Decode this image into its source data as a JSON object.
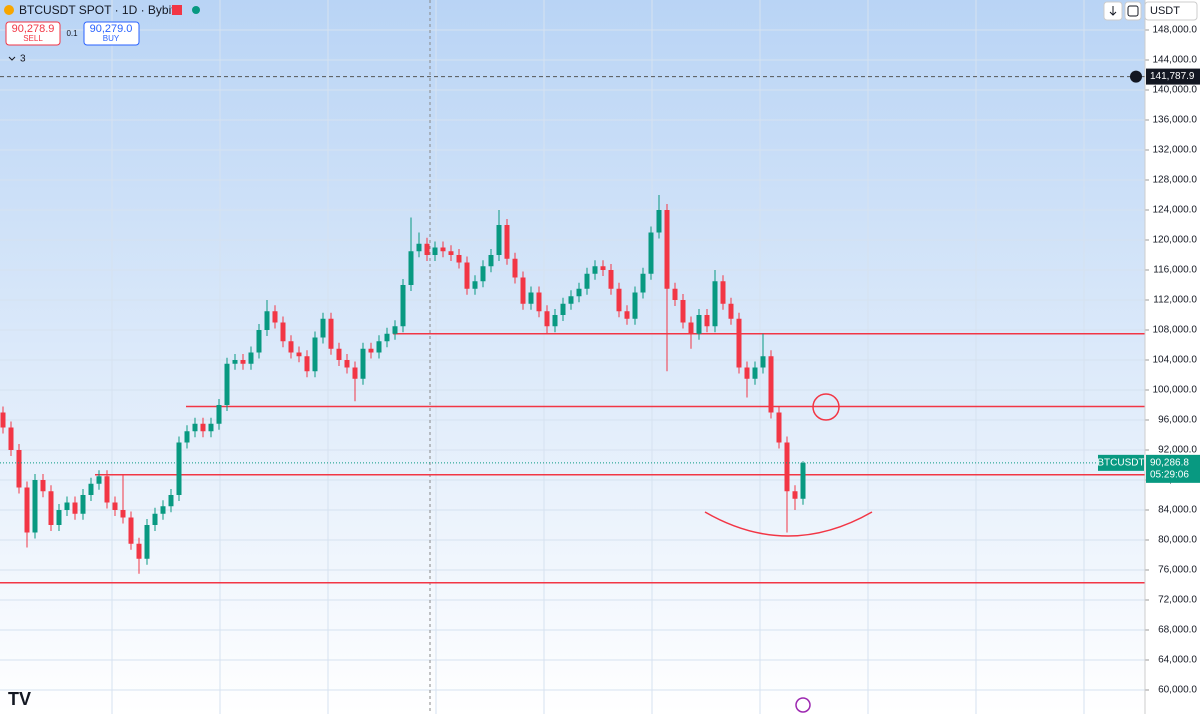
{
  "chart_data": {
    "type": "candlestick",
    "title": "BTCUSDT SPOT · 1D · Bybit",
    "open": [
      97000,
      95000,
      92000,
      87000,
      81000,
      88000,
      86500,
      82000,
      84000,
      85000,
      83500,
      86000,
      87500,
      88500,
      85000,
      84000,
      83000,
      79500,
      77500,
      82000,
      83500,
      84500,
      86000,
      93000,
      94500,
      95500,
      94500,
      95500,
      98000,
      103500,
      104000,
      103500,
      105000,
      108000,
      110500,
      109000,
      106500,
      105000,
      104500,
      102500,
      107000,
      109500,
      105500,
      104000,
      103000,
      101500,
      105500,
      105000,
      106500,
      107500,
      108500,
      114000,
      118500,
      119500,
      118000,
      119000,
      118500,
      118000,
      117000,
      113500,
      114500,
      116500,
      118000,
      122000,
      117500,
      115000,
      111500,
      113000,
      110500,
      108500,
      110000,
      111500,
      112500,
      113500,
      115500,
      116500,
      116000,
      113500,
      110500,
      109500,
      113000,
      115500,
      121000,
      124000,
      113500,
      112000,
      109000,
      107500,
      110000,
      108500,
      114500,
      111500,
      109500,
      103000,
      101500,
      103000,
      104500,
      97000,
      93000,
      86500,
      85500
    ],
    "high": [
      97800,
      95800,
      92800,
      87800,
      88800,
      88800,
      87300,
      84800,
      85800,
      85800,
      86800,
      88300,
      89300,
      89300,
      85800,
      88800,
      83800,
      80300,
      82800,
      84300,
      85300,
      86800,
      93800,
      95300,
      96300,
      96300,
      96300,
      98800,
      104300,
      104800,
      104800,
      105800,
      108800,
      112000,
      111300,
      109800,
      107300,
      105800,
      105300,
      107800,
      110300,
      110300,
      106300,
      104800,
      103800,
      106300,
      106300,
      107300,
      108300,
      109300,
      114800,
      123000,
      121000,
      120300,
      119800,
      119800,
      119300,
      118800,
      117800,
      115300,
      117300,
      118800,
      124000,
      122800,
      118300,
      115800,
      113800,
      113800,
      111300,
      110800,
      112300,
      113300,
      114300,
      116300,
      117300,
      117300,
      116800,
      114300,
      111300,
      113800,
      116300,
      121800,
      126000,
      124800,
      114300,
      112800,
      109800,
      110800,
      110800,
      116000,
      115300,
      112300,
      110300,
      103800,
      103800,
      107500,
      105300,
      97800,
      93800,
      87300,
      90500
    ],
    "low": [
      94200,
      91200,
      86200,
      79000,
      80200,
      85700,
      81200,
      81200,
      83200,
      82700,
      82700,
      85200,
      86700,
      84200,
      83200,
      82200,
      78700,
      75500,
      76700,
      81200,
      82700,
      83700,
      85200,
      92200,
      93700,
      93700,
      93700,
      94700,
      97200,
      102700,
      102700,
      102700,
      104200,
      107200,
      108200,
      105700,
      104200,
      103700,
      101700,
      101700,
      106200,
      104700,
      103200,
      102200,
      98500,
      100700,
      104200,
      104200,
      105700,
      106700,
      107700,
      113200,
      117700,
      117200,
      117200,
      117700,
      117200,
      116200,
      112700,
      112700,
      113700,
      115700,
      117200,
      116700,
      114200,
      110700,
      110700,
      109700,
      107500,
      107700,
      109200,
      110700,
      111700,
      112700,
      114700,
      115200,
      112700,
      109700,
      108700,
      108700,
      112200,
      114700,
      120200,
      102500,
      111200,
      108200,
      105500,
      106700,
      107700,
      107700,
      110700,
      108700,
      102200,
      99000,
      100700,
      102200,
      96200,
      92200,
      81000,
      84000,
      84700
    ],
    "close": [
      95000,
      92000,
      87000,
      81000,
      88000,
      86500,
      82000,
      84000,
      85000,
      83500,
      86000,
      87500,
      88500,
      85000,
      84000,
      83000,
      79500,
      77500,
      82000,
      83500,
      84500,
      86000,
      93000,
      94500,
      95500,
      94500,
      95500,
      98000,
      103500,
      104000,
      103500,
      105000,
      108000,
      110500,
      109000,
      106500,
      105000,
      104500,
      102500,
      107000,
      109500,
      105500,
      104000,
      103000,
      101500,
      105500,
      105000,
      106500,
      107500,
      108500,
      114000,
      118500,
      119500,
      118000,
      119000,
      118500,
      118000,
      117000,
      113500,
      114500,
      116500,
      118000,
      122000,
      117500,
      115000,
      111500,
      113000,
      110500,
      108500,
      110000,
      111500,
      112500,
      113500,
      115500,
      116500,
      116000,
      113500,
      110500,
      109500,
      113000,
      115500,
      121000,
      124000,
      113500,
      112000,
      109000,
      107500,
      110000,
      108500,
      114500,
      111500,
      109500,
      103000,
      101500,
      103000,
      104500,
      97000,
      93000,
      86500,
      85500,
      90286.8
    ],
    "up_color": "#089981",
    "down_color": "#f23645",
    "ylim": [
      56800,
      152000
    ],
    "yticks": [
      {
        "value": 60000,
        "label": "60,000.0"
      },
      {
        "value": 64000,
        "label": "64,000.0"
      },
      {
        "value": 68000,
        "label": "68,000.0"
      },
      {
        "value": 72000,
        "label": "72,000.0"
      },
      {
        "value": 76000,
        "label": "76,000.0"
      },
      {
        "value": 80000,
        "label": "80,000.0"
      },
      {
        "value": 84000,
        "label": "84,000.0"
      },
      {
        "value": 88000,
        "label": "88,000.0"
      },
      {
        "value": 92000,
        "label": "92,000.0"
      },
      {
        "value": 96000,
        "label": "96,000.0"
      },
      {
        "value": 100000,
        "label": "100,000.0"
      },
      {
        "value": 104000,
        "label": "104,000.0"
      },
      {
        "value": 108000,
        "label": "108,000.0"
      },
      {
        "value": 112000,
        "label": "112,000.0"
      },
      {
        "value": 116000,
        "label": "116,000.0"
      },
      {
        "value": 120000,
        "label": "120,000.0"
      },
      {
        "value": 124000,
        "label": "124,000.0"
      },
      {
        "value": 128000,
        "label": "128,000.0"
      },
      {
        "value": 132000,
        "label": "132,000.0"
      },
      {
        "value": 136000,
        "label": "136,000.0"
      },
      {
        "value": 140000,
        "label": "140,000.0"
      },
      {
        "value": 144000,
        "label": "144,000.0"
      },
      {
        "value": 148000,
        "label": "148,000.0"
      }
    ],
    "grid": true,
    "hlines": [
      107500,
      97800,
      88700,
      74300
    ],
    "hline_color": "#f23645",
    "alert_line": {
      "value": 141787.9,
      "label": "141,787.9"
    },
    "symbol": "BTCUSDT",
    "last_price_label": "90,286.8",
    "countdown": "05:29:06"
  },
  "toolbar": {
    "sell_price": "90,278.9",
    "sell": "SELL",
    "quantity": "0.1",
    "buy_price": "90,279.0",
    "buy": "BUY",
    "indicators": "3",
    "currency": "USDT"
  }
}
